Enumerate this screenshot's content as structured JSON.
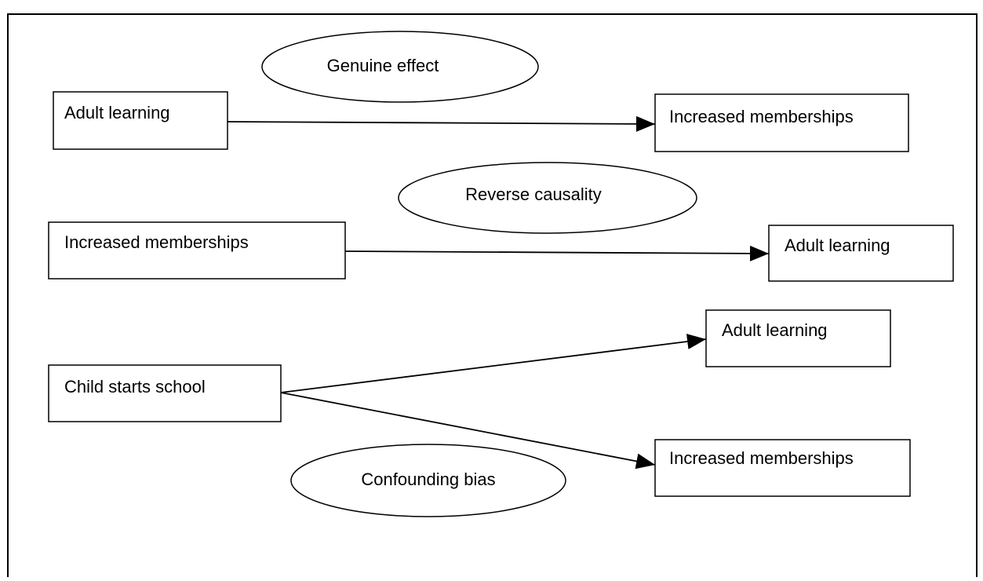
{
  "panels": [
    {
      "label": "Genuine effect",
      "source": "Adult learning",
      "targets": [
        "Increased memberships"
      ]
    },
    {
      "label": "Reverse causality",
      "source": "Increased memberships",
      "targets": [
        "Adult learning"
      ]
    },
    {
      "label": "Confounding bias",
      "source": "Child starts school",
      "targets": [
        "Adult learning",
        "Increased memberships"
      ]
    }
  ]
}
